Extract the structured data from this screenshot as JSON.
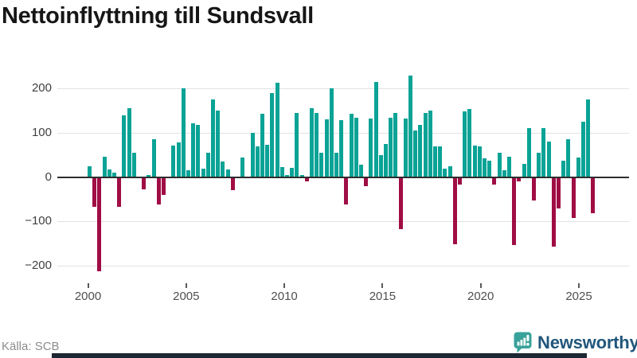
{
  "title": "Nettoinflyttning till Sundsvall",
  "source": "Källa: SCB",
  "branding": {
    "name": "Newsworthy",
    "icon": "newsworthy-bubble-chart-icon",
    "text_color": "#20567c",
    "icon_color": "#38a29b"
  },
  "colors": {
    "positive_bar": "#0aa396",
    "negative_bar": "#a00d45",
    "gridline": "#e2e2e2",
    "zero_axis": "#2e2e2e"
  },
  "chart_data": {
    "type": "bar",
    "title": "Nettoinflyttning till Sundsvall",
    "xlabel": "",
    "ylabel": "",
    "frequency": "quarterly",
    "start_period": "2000Q1",
    "end_period": "2025Q3",
    "grid": true,
    "legend": false,
    "ylim": [
      -240,
      248
    ],
    "y_ticks": [
      200,
      100,
      0,
      -100,
      -200
    ],
    "y_tick_labels": [
      "200",
      "100",
      "0",
      "−100",
      "−200"
    ],
    "x_tick_labels": [
      "2000",
      "2005",
      "2010",
      "2015",
      "2020",
      "2025"
    ],
    "x_labels": [
      "2000Q1",
      "2000Q2",
      "2000Q3",
      "2000Q4",
      "2001Q1",
      "2001Q2",
      "2001Q3",
      "2001Q4",
      "2002Q1",
      "2002Q2",
      "2002Q3",
      "2002Q4",
      "2003Q1",
      "2003Q2",
      "2003Q3",
      "2003Q4",
      "2004Q1",
      "2004Q2",
      "2004Q3",
      "2004Q4",
      "2005Q1",
      "2005Q2",
      "2005Q3",
      "2005Q4",
      "2006Q1",
      "2006Q2",
      "2006Q3",
      "2006Q4",
      "2007Q1",
      "2007Q2",
      "2007Q3",
      "2007Q4",
      "2008Q1",
      "2008Q2",
      "2008Q3",
      "2008Q4",
      "2009Q1",
      "2009Q2",
      "2009Q3",
      "2009Q4",
      "2010Q1",
      "2010Q2",
      "2010Q3",
      "2010Q4",
      "2011Q1",
      "2011Q2",
      "2011Q3",
      "2011Q4",
      "2012Q1",
      "2012Q2",
      "2012Q3",
      "2012Q4",
      "2013Q1",
      "2013Q2",
      "2013Q3",
      "2013Q4",
      "2014Q1",
      "2014Q2",
      "2014Q3",
      "2014Q4",
      "2015Q1",
      "2015Q2",
      "2015Q3",
      "2015Q4",
      "2016Q1",
      "2016Q2",
      "2016Q3",
      "2016Q4",
      "2017Q1",
      "2017Q2",
      "2017Q3",
      "2017Q4",
      "2018Q1",
      "2018Q2",
      "2018Q3",
      "2018Q4",
      "2019Q1",
      "2019Q2",
      "2019Q3",
      "2019Q4",
      "2020Q1",
      "2020Q2",
      "2020Q3",
      "2020Q4",
      "2021Q1",
      "2021Q2",
      "2021Q3",
      "2021Q4",
      "2022Q1",
      "2022Q2",
      "2022Q3",
      "2022Q4",
      "2023Q1",
      "2023Q2",
      "2023Q3",
      "2023Q4",
      "2024Q1",
      "2024Q2",
      "2024Q3",
      "2024Q4",
      "2025Q1",
      "2025Q2",
      "2025Q3"
    ],
    "values": [
      25,
      -65,
      -210,
      46,
      18,
      11,
      -65,
      140,
      155,
      55,
      0,
      -25,
      5,
      85,
      -60,
      -38,
      0,
      72,
      78,
      200,
      15,
      122,
      118,
      20,
      55,
      175,
      150,
      35,
      18,
      -28,
      2,
      45,
      0,
      100,
      70,
      143,
      73,
      190,
      213,
      22,
      5,
      21,
      145,
      5,
      -8,
      155,
      145,
      55,
      130,
      200,
      55,
      128,
      -60,
      143,
      135,
      28,
      -18,
      132,
      215,
      50,
      75,
      135,
      145,
      -115,
      133,
      230,
      105,
      118,
      145,
      150,
      70,
      70,
      20,
      25,
      -150,
      -15,
      148,
      153,
      72,
      70,
      42,
      38,
      -15,
      55,
      15,
      47,
      -152,
      -7,
      30,
      110,
      -50,
      55,
      110,
      80,
      -155,
      -69,
      38,
      85,
      -90,
      45,
      125,
      175,
      -80
    ]
  }
}
